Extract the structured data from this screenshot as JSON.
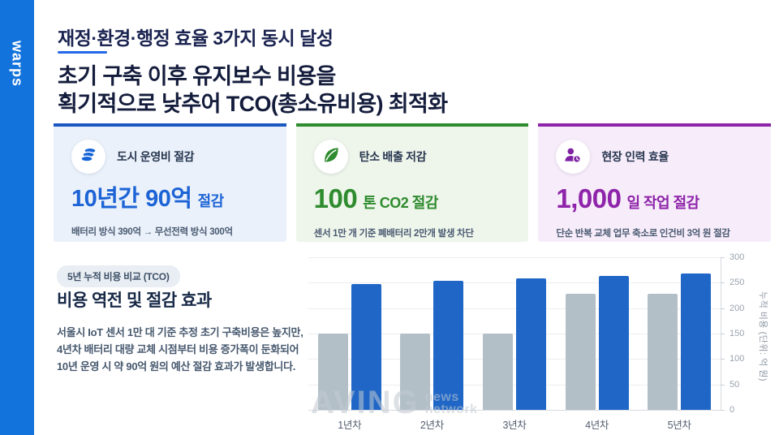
{
  "brand": {
    "logo": "warps",
    "sidebar_color": "#1273DC"
  },
  "header": {
    "kicker": "재정·환경·행정 효율 3가지 동시 달성",
    "title_line1": "초기 구축 이후 유지보수 비용을",
    "title_line2": "획기적으로 낮추어 TCO(총소유비용) 최적화",
    "accent_color": "#2368E8"
  },
  "cards": [
    {
      "icon": "coins-icon",
      "title": "도시 운영비 절감",
      "value": "10년간 90억",
      "suffix": "절감",
      "desc": "배터리 방식 390억 → 무선전력 방식 300억",
      "accent": "#1B58C2",
      "value_color": "#1C63D6",
      "bg": "#EAF1FA"
    },
    {
      "icon": "leaf-icon",
      "title": "탄소 배출 저감",
      "value": "100",
      "suffix": "톤 CO2 절감",
      "desc": "센서 1만 개 기준 폐배터리 2만개 발생 차단",
      "accent": "#2F8C2F",
      "value_color": "#2E8B2E",
      "bg": "#EEF5EA"
    },
    {
      "icon": "person-clock-icon",
      "title": "현장 인력 효율",
      "value": "1,000",
      "suffix": "일 작업 절감",
      "desc": "단순 반복 교체 업무 축소로 인건비 3억 원 절감",
      "accent": "#8E24AA",
      "value_color": "#8E24AA",
      "bg": "#F7ECF9"
    }
  ],
  "tco_section": {
    "badge": "5년 누적 비용 비교 (TCO)",
    "heading": "비용 역전 및 절감 효과",
    "body_lines": [
      "서울시 IoT 센서 1만 대 기준 추정 초기 구축비용은 높지만,",
      "4년차 배터리 대량 교체 시점부터 비용 증가폭이 둔화되어",
      "10년 운영 시 약 90억 원의 예산 절감 효과가 발생합니다."
    ]
  },
  "watermark": {
    "big": "AVING",
    "line1": "news",
    "line2": "network"
  },
  "chart_data": {
    "type": "bar",
    "categories": [
      "1년차",
      "2년차",
      "3년차",
      "4년차",
      "5년차"
    ],
    "series": [
      {
        "name": "gray-series",
        "color": "#B3BFC7",
        "values": [
          150,
          150,
          150,
          228,
          228
        ]
      },
      {
        "name": "blue-series",
        "color": "#1F66C6",
        "values": [
          248,
          253,
          258,
          263,
          268
        ]
      }
    ],
    "title": "",
    "xlabel": "",
    "ylabel": "누적 비용 (단위: 억 원)",
    "ylim": [
      0,
      300
    ],
    "yticks": [
      0,
      50,
      100,
      150,
      200,
      250,
      300
    ],
    "grid": true,
    "legend_position": "none",
    "y_axis_side": "right"
  }
}
